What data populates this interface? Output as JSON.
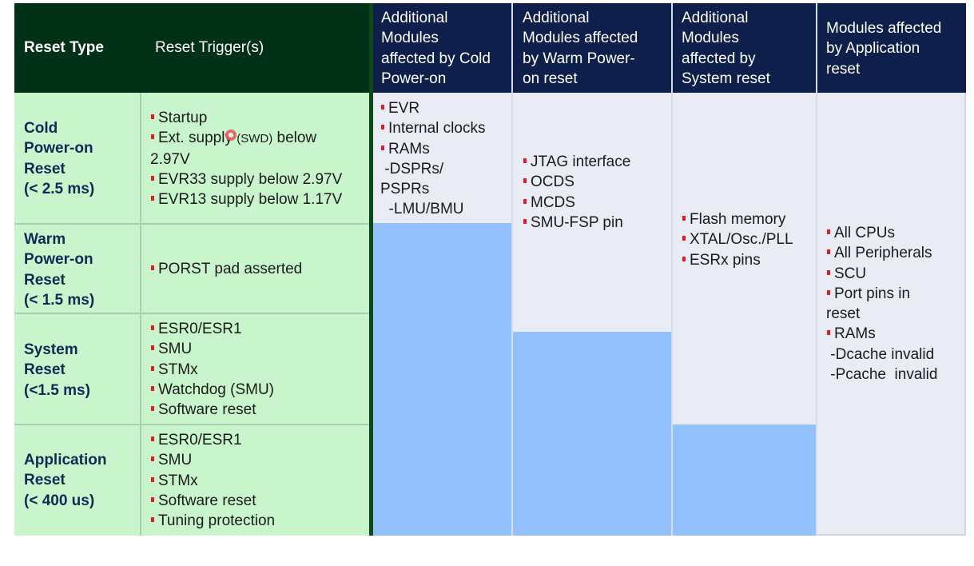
{
  "headers": {
    "reset_type": "Reset Type",
    "reset_triggers": "Reset Trigger(s)",
    "cold": [
      "Additional",
      "Modules",
      "affected by Cold",
      "Power-on"
    ],
    "warm": [
      "Additional",
      "Modules affected",
      "by Warm Power-",
      "on reset"
    ],
    "system": [
      "Additional",
      "Modules",
      "affected by",
      "System reset"
    ],
    "application": [
      "Modules affected",
      "by Application",
      "reset"
    ]
  },
  "rows": [
    {
      "type_lines": [
        "Cold",
        "Power-on",
        "Reset",
        "(< 2.5 ms)"
      ],
      "triggers": [
        "Startup",
        "Ext. supply ",
        "2.97V",
        "EVR33 supply below 2.97V",
        "EVR13 supply below 1.17V"
      ],
      "trigger_swd": "(SWD)",
      "trigger_swd_after": " below"
    },
    {
      "type_lines": [
        "Warm",
        "Power-on",
        "Reset",
        "(< 1.5 ms)"
      ],
      "triggers": [
        "PORST pad asserted"
      ]
    },
    {
      "type_lines": [
        "System",
        "Reset",
        "(<1.5 ms)"
      ],
      "triggers": [
        "ESR0/ESR1",
        "SMU",
        "STMx",
        "Watchdog (SMU)",
        "Software reset"
      ]
    },
    {
      "type_lines": [
        "Application",
        "Reset",
        "(< 400 us)"
      ],
      "triggers": [
        "ESR0/ESR1",
        "SMU",
        "STMx",
        "Software reset",
        "Tuning protection"
      ]
    }
  ],
  "modules": {
    "cold": [
      "EVR",
      "Internal clocks",
      "RAMs",
      " -DSPRs/",
      "PSPRs",
      "  -LMU/BMU"
    ],
    "warm": [
      "JTAG interface",
      "OCDS",
      "MCDS",
      "SMU-FSP pin"
    ],
    "system": [
      "Flash memory",
      "XTAL/Osc./PLL",
      "ESRx pins"
    ],
    "application": [
      "All CPUs",
      "All Peripherals",
      "SCU",
      "Port pins in",
      "reset",
      "RAMs",
      " -Dcache invalid",
      " -Pcache  invalid"
    ]
  },
  "colors": {
    "header_green": "#003016",
    "header_navy": "#0d1f4a",
    "light_green": "#c9f5cc",
    "light_gray": "#e9ecf4",
    "blue_fill": "#93c1fb",
    "bullet_red": "#e31b23"
  }
}
